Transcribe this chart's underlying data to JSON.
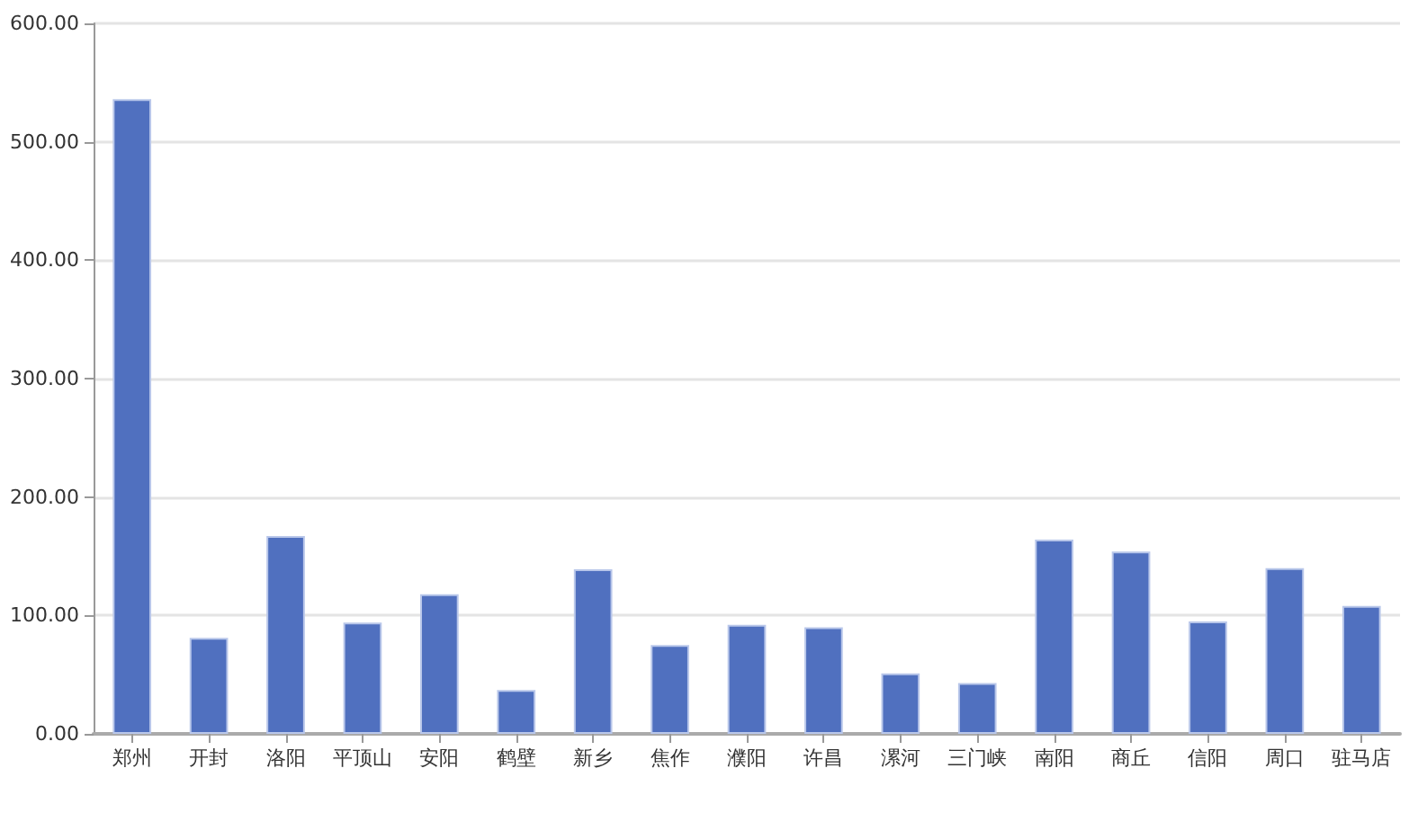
{
  "chart_data": {
    "type": "bar",
    "categories": [
      "郑州",
      "开封",
      "洛阳",
      "平顶山",
      "安阳",
      "鹤壁",
      "新乡",
      "焦作",
      "濮阳",
      "许昌",
      "漯河",
      "三门峡",
      "南阳",
      "商丘",
      "信阳",
      "周口",
      "驻马店"
    ],
    "values": [
      536,
      81,
      167,
      94,
      118,
      37,
      139,
      75,
      92,
      90,
      51,
      43,
      164,
      154,
      95,
      140,
      108
    ],
    "color": "#5070bf",
    "ylim": [
      0,
      600
    ],
    "yticks": [
      {
        "value": 0,
        "label": "0.00"
      },
      {
        "value": 100,
        "label": "100.00"
      },
      {
        "value": 200,
        "label": "200.00"
      },
      {
        "value": 300,
        "label": "300.00"
      },
      {
        "value": 400,
        "label": "400.00"
      },
      {
        "value": 500,
        "label": "500.00"
      },
      {
        "value": 600,
        "label": "600.00"
      }
    ],
    "grid": "y"
  }
}
